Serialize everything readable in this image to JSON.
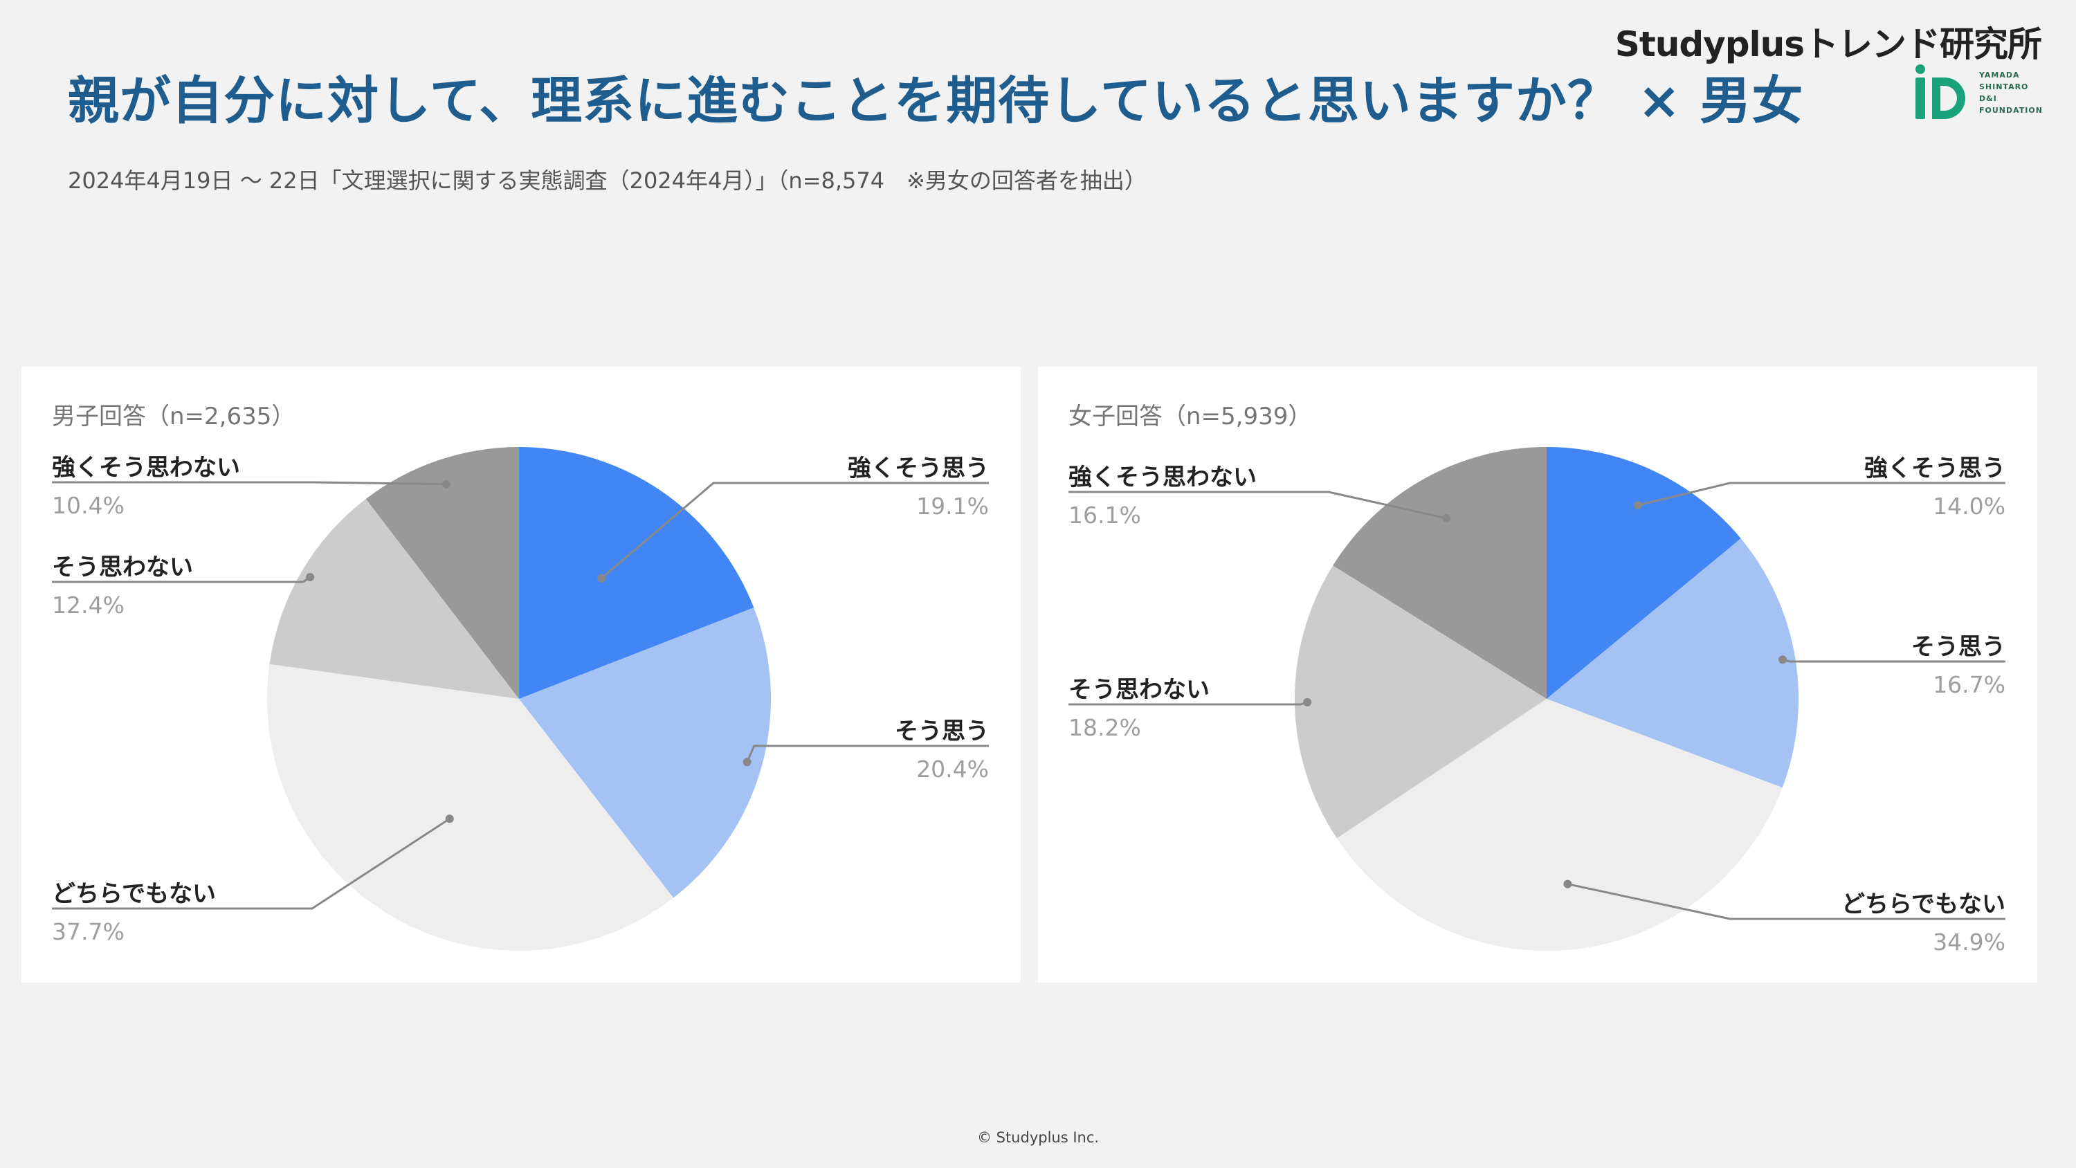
{
  "header": {
    "brand": "Studyplusトレンド研究所",
    "logo_text": "YAMADA\nSHINTARO\nD&I\nFOUNDATION",
    "title": "親が自分に対して、理系に進むことを期待していると思いますか？ × 男女",
    "subtitle": "2024年4月19日 〜 22日「文理選択に関する実態調査（2024年4月）」（n=8,574　※男女の回答者を抽出）"
  },
  "colors": {
    "title": "#1f5d8e",
    "slices": [
      "#4285f4",
      "#a4c2f4",
      "#eeeeee",
      "#cccccc",
      "#999999"
    ],
    "logo": "#1aa37a"
  },
  "chart_data": [
    {
      "type": "pie",
      "title": "男子回答（n=2,635）",
      "slices": [
        {
          "label": "強くそう思う",
          "value": 19.1,
          "display": "19.1%"
        },
        {
          "label": "そう思う",
          "value": 20.4,
          "display": "20.4%"
        },
        {
          "label": "どちらでもない",
          "value": 37.7,
          "display": "37.7%"
        },
        {
          "label": "そう思わない",
          "value": 12.4,
          "display": "12.4%"
        },
        {
          "label": "強くそう思わない",
          "value": 10.4,
          "display": "10.4%"
        }
      ]
    },
    {
      "type": "pie",
      "title": "女子回答（n=5,939）",
      "slices": [
        {
          "label": "強くそう思う",
          "value": 14.0,
          "display": "14.0%"
        },
        {
          "label": "そう思う",
          "value": 16.7,
          "display": "16.7%"
        },
        {
          "label": "どちらでもない",
          "value": 34.9,
          "display": "34.9%"
        },
        {
          "label": "そう思わない",
          "value": 18.2,
          "display": "18.2%"
        },
        {
          "label": "強くそう思わない",
          "value": 16.1,
          "display": "16.1%"
        }
      ]
    }
  ],
  "footer": "© Studyplus Inc."
}
